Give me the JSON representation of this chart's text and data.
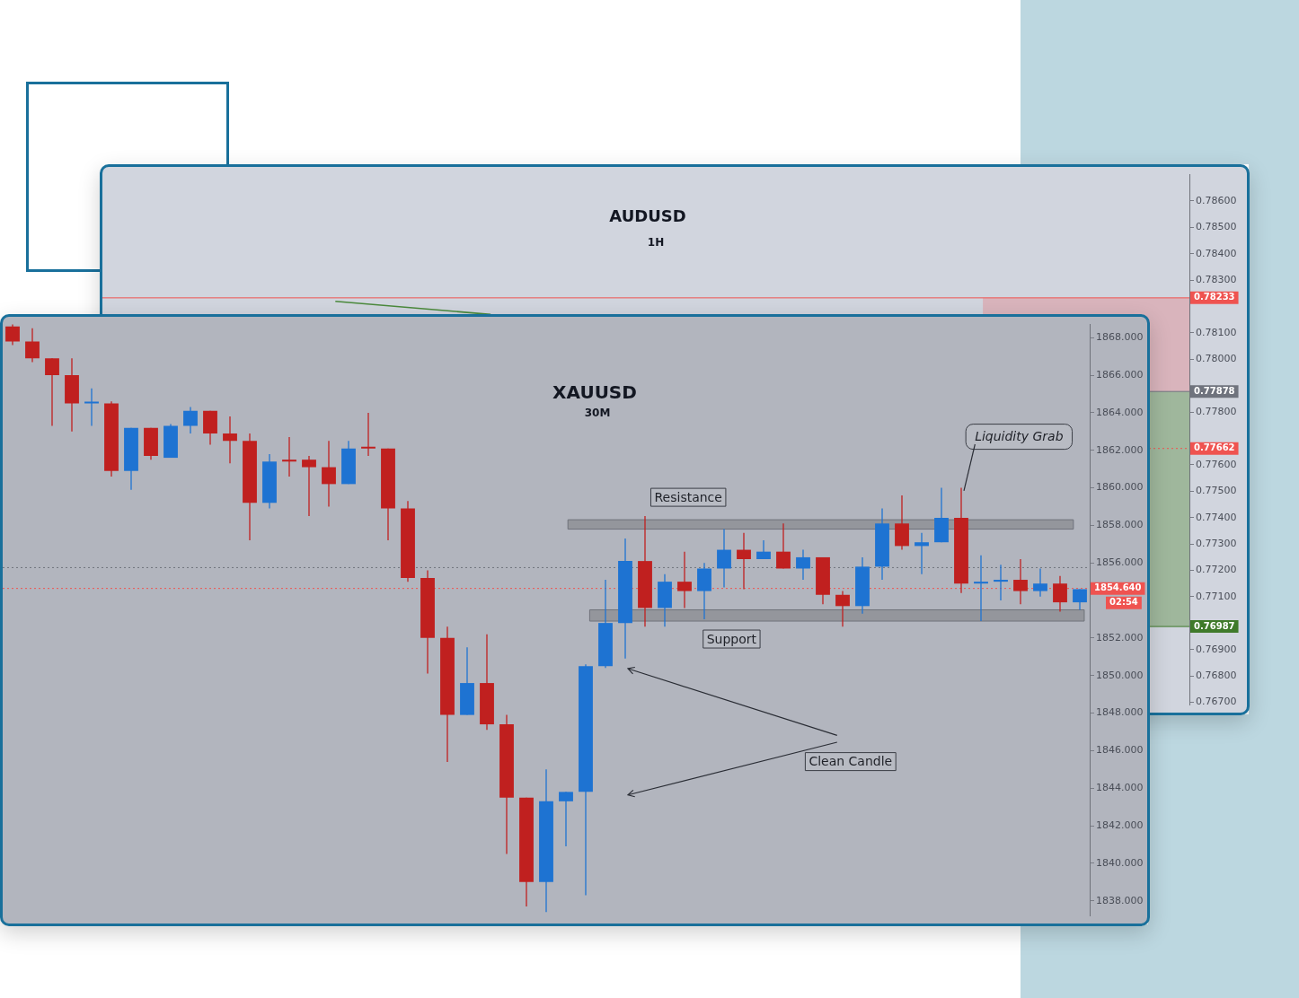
{
  "chart_data": [
    {
      "type": "line",
      "title": "AUDUSD",
      "subtitle": "1H",
      "categories": [
        null,
        null,
        null,
        null,
        null,
        null,
        null
      ],
      "series": [
        {
          "color": "#4b8a3c",
          "values": [
            null,
            0.7822,
            0.7817,
            null,
            null,
            null,
            null
          ]
        }
      ],
      "ylim": [
        0.7669,
        0.787
      ],
      "yticks": [
        {
          "value": 0.767,
          "label": "0.76700"
        },
        {
          "value": 0.768,
          "label": "0.76800"
        },
        {
          "value": 0.769,
          "label": "0.76900"
        },
        {
          "value": 0.771,
          "label": "0.77100"
        },
        {
          "value": 0.772,
          "label": "0.77200"
        },
        {
          "value": 0.773,
          "label": "0.77300"
        },
        {
          "value": 0.774,
          "label": "0.77400"
        },
        {
          "value": 0.775,
          "label": "0.77500"
        },
        {
          "value": 0.776,
          "label": "0.77600"
        },
        {
          "value": 0.778,
          "label": "0.77800"
        },
        {
          "value": 0.78,
          "label": "0.78000"
        },
        {
          "value": 0.781,
          "label": "0.78100"
        },
        {
          "value": 0.783,
          "label": "0.78300"
        },
        {
          "value": 0.784,
          "label": "0.78400"
        },
        {
          "value": 0.785,
          "label": "0.78500"
        },
        {
          "value": 0.786,
          "label": "0.78600"
        }
      ],
      "bands": [
        {
          "axis": "y",
          "from": 0.77878,
          "to": 0.78233,
          "color": "#d9b4bc"
        },
        {
          "axis": "y",
          "from": 0.76987,
          "to": 0.77878,
          "color": "#9fb79c"
        }
      ],
      "ref_lines": [
        {
          "axis": "y",
          "value": 0.78233,
          "label": "0.78233",
          "color": "#ef5350"
        },
        {
          "axis": "y",
          "value": 0.77878,
          "label": "0.77878",
          "color": "#6f737d"
        },
        {
          "axis": "y",
          "value": 0.77662,
          "label": "0.77662",
          "color": "#ef5350",
          "line_style": "dotted"
        },
        {
          "axis": "y",
          "value": 0.76987,
          "label": "0.76987",
          "color": "#3f7a2a"
        }
      ],
      "grid": false,
      "legend": false,
      "tick_labels": "y"
    },
    {
      "type": "candlestick",
      "title": "XAUUSD",
      "subtitle": "30M",
      "categories": [
        null,
        null,
        null,
        null,
        null,
        null,
        null,
        null,
        null,
        null,
        null,
        null,
        null,
        null,
        null,
        null,
        null,
        null,
        null,
        null,
        null,
        null,
        null,
        null,
        null,
        null,
        null,
        null,
        null,
        null,
        null,
        null,
        null,
        null,
        null,
        null,
        null,
        null,
        null,
        null,
        null,
        null,
        null,
        null,
        null,
        null,
        null,
        null,
        null,
        null,
        null,
        null,
        null,
        null,
        null
      ],
      "ohlc": [
        [
          1868.6,
          1868.7,
          1867.6,
          1867.8
        ],
        [
          1867.8,
          1868.5,
          1866.7,
          1866.9
        ],
        [
          1866.9,
          1866.9,
          1863.3,
          1866.0
        ],
        [
          1866.0,
          1866.9,
          1863.0,
          1864.5
        ],
        [
          1864.5,
          1865.3,
          1863.3,
          1864.5
        ],
        [
          1864.5,
          1864.6,
          1860.6,
          1860.9
        ],
        [
          1860.9,
          1863.2,
          1859.9,
          1863.2
        ],
        [
          1863.2,
          1863.2,
          1861.5,
          1861.7
        ],
        [
          1861.6,
          1863.4,
          1861.6,
          1863.3
        ],
        [
          1863.3,
          1864.3,
          1862.9,
          1864.1
        ],
        [
          1864.1,
          1864.1,
          1862.3,
          1862.9
        ],
        [
          1862.9,
          1863.8,
          1861.3,
          1862.5
        ],
        [
          1862.5,
          1862.9,
          1857.2,
          1859.2
        ],
        [
          1859.2,
          1861.8,
          1858.9,
          1861.4
        ],
        [
          1861.5,
          1862.7,
          1860.6,
          1861.4
        ],
        [
          1861.5,
          1861.7,
          1858.5,
          1861.1
        ],
        [
          1861.1,
          1862.5,
          1859.0,
          1860.2
        ],
        [
          1860.2,
          1862.5,
          1860.2,
          1862.1
        ],
        [
          1862.1,
          1864.0,
          1861.7,
          1862.1
        ],
        [
          1862.1,
          1862.1,
          1857.2,
          1858.9
        ],
        [
          1858.9,
          1859.3,
          1855.0,
          1855.2
        ],
        [
          1855.2,
          1855.6,
          1850.1,
          1852.0
        ],
        [
          1852.0,
          1852.6,
          1845.4,
          1847.9
        ],
        [
          1847.9,
          1851.5,
          1847.9,
          1849.6
        ],
        [
          1849.6,
          1852.2,
          1847.1,
          1847.4
        ],
        [
          1847.4,
          1847.9,
          1840.5,
          1843.5
        ],
        [
          1843.5,
          1843.5,
          1837.7,
          1839.0
        ],
        [
          1839.0,
          1845.0,
          1837.4,
          1843.3
        ],
        [
          1843.3,
          1843.8,
          1840.9,
          1843.8
        ],
        [
          1843.8,
          1850.6,
          1838.3,
          1850.5
        ],
        [
          1850.5,
          1855.1,
          1850.4,
          1852.8
        ],
        [
          1852.8,
          1857.3,
          1850.9,
          1856.1
        ],
        [
          1856.1,
          1858.5,
          1852.6,
          1853.6
        ],
        [
          1853.6,
          1855.4,
          1852.6,
          1855.0
        ],
        [
          1855.0,
          1856.6,
          1853.6,
          1854.5
        ],
        [
          1854.5,
          1856.0,
          1853.0,
          1855.7
        ],
        [
          1855.7,
          1857.8,
          1854.7,
          1856.7
        ],
        [
          1856.7,
          1857.6,
          1854.6,
          1856.2
        ],
        [
          1856.2,
          1857.2,
          1856.2,
          1856.6
        ],
        [
          1856.6,
          1858.1,
          1855.7,
          1855.7
        ],
        [
          1855.7,
          1856.7,
          1855.1,
          1856.3
        ],
        [
          1856.3,
          1856.3,
          1853.8,
          1854.3
        ],
        [
          1854.3,
          1854.5,
          1852.6,
          1853.7
        ],
        [
          1853.7,
          1856.3,
          1853.3,
          1855.8
        ],
        [
          1855.8,
          1858.9,
          1855.1,
          1858.1
        ],
        [
          1858.1,
          1859.6,
          1856.7,
          1856.9
        ],
        [
          1856.9,
          1857.6,
          1855.4,
          1857.1
        ],
        [
          1857.1,
          1860.0,
          1857.1,
          1858.4
        ],
        [
          1858.4,
          1860.0,
          1854.4,
          1854.9
        ],
        [
          1854.9,
          1856.4,
          1852.9,
          1855.0
        ],
        [
          1855.0,
          1855.9,
          1854.0,
          1855.1
        ],
        [
          1855.1,
          1856.2,
          1853.8,
          1854.5
        ],
        [
          1854.5,
          1855.7,
          1854.2,
          1854.9
        ],
        [
          1854.9,
          1855.3,
          1853.4,
          1853.9
        ],
        [
          1853.9,
          1854.6,
          1853.5,
          1854.6
        ]
      ],
      "colors": [
        "#c0201f",
        "#c0201f",
        "#c0201f",
        "#c0201f",
        "#1e73d2",
        "#c0201f",
        "#1e73d2",
        "#c0201f",
        "#1e73d2",
        "#1e73d2",
        "#c0201f",
        "#c0201f",
        "#c0201f",
        "#1e73d2",
        "#c0201f",
        "#c0201f",
        "#c0201f",
        "#1e73d2",
        "#c0201f",
        "#c0201f",
        "#c0201f",
        "#c0201f",
        "#c0201f",
        "#1e73d2",
        "#c0201f",
        "#c0201f",
        "#c0201f",
        "#1e73d2",
        "#1e73d2",
        "#1e73d2",
        "#1e73d2",
        "#1e73d2",
        "#c0201f",
        "#1e73d2",
        "#c0201f",
        "#1e73d2",
        "#1e73d2",
        "#c0201f",
        "#1e73d2",
        "#c0201f",
        "#1e73d2",
        "#c0201f",
        "#c0201f",
        "#1e73d2",
        "#1e73d2",
        "#c0201f",
        "#1e73d2",
        "#1e73d2",
        "#c0201f",
        "#1e73d2",
        "#1e73d2",
        "#c0201f",
        "#1e73d2",
        "#c0201f",
        "#1e73d2"
      ],
      "ylim": [
        1837.2,
        1868.7
      ],
      "yticks": [
        {
          "value": 1838,
          "label": "1838.000"
        },
        {
          "value": 1840,
          "label": "1840.000"
        },
        {
          "value": 1842,
          "label": "1842.000"
        },
        {
          "value": 1844,
          "label": "1844.000"
        },
        {
          "value": 1846,
          "label": "1846.000"
        },
        {
          "value": 1848,
          "label": "1848.000"
        },
        {
          "value": 1850,
          "label": "1850.000"
        },
        {
          "value": 1852,
          "label": "1852.000"
        },
        {
          "value": 1856,
          "label": "1856.000"
        },
        {
          "value": 1858,
          "label": "1858.000"
        },
        {
          "value": 1860,
          "label": "1860.000"
        },
        {
          "value": 1862,
          "label": "1862.000"
        },
        {
          "value": 1864,
          "label": "1864.000"
        },
        {
          "value": 1866,
          "label": "1866.000"
        },
        {
          "value": 1868,
          "label": "1868.000"
        }
      ],
      "bands": [
        {
          "axis": "y",
          "from": 1857.8,
          "to": 1858.3,
          "label": "Resistance",
          "color": "#8e9097"
        },
        {
          "axis": "y",
          "from": 1852.9,
          "to": 1853.5,
          "label": "Support",
          "color": "#8e9097"
        }
      ],
      "ref_lines": [
        {
          "axis": "y",
          "value": 1855.75,
          "color": "#6f737d",
          "line_style": "dotted"
        },
        {
          "axis": "y",
          "value": 1854.64,
          "label": "1854.640",
          "color": "#ef5350",
          "line_style": "dotted"
        }
      ],
      "annotations": [
        "Liquidity Grab",
        "Clean Candle",
        "02:54"
      ],
      "grid": false,
      "legend": false,
      "tick_labels": "y"
    }
  ]
}
